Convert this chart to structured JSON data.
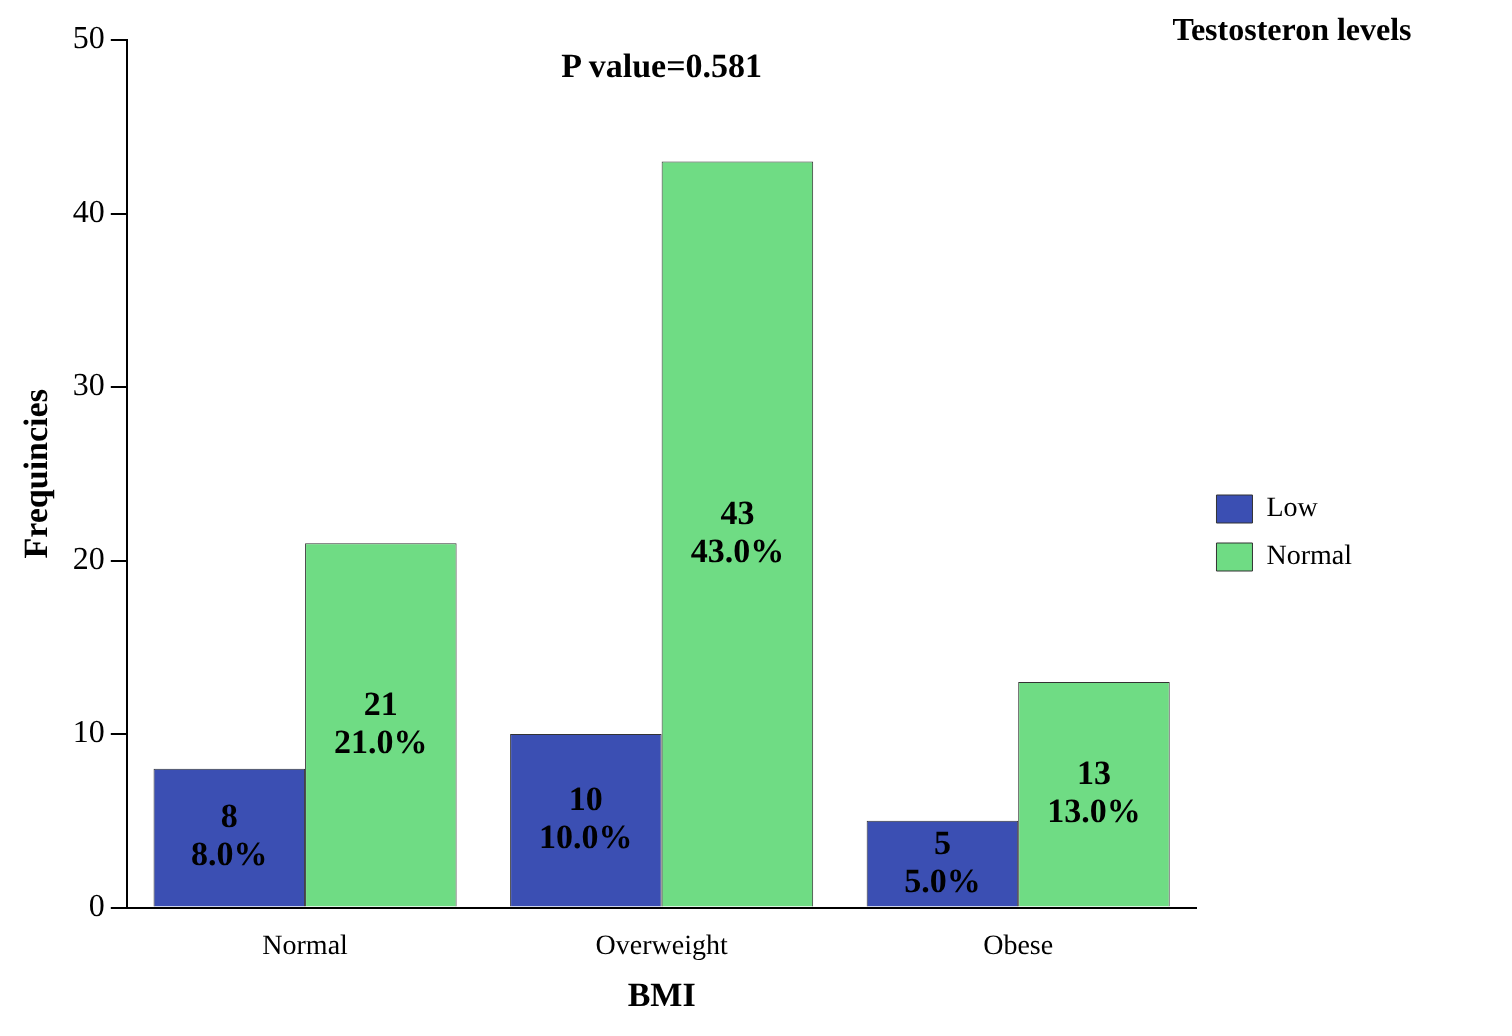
{
  "chart_data": {
    "type": "bar",
    "xlabel": "BMI",
    "ylabel": "Frequincies",
    "legend_title": "Testosteron levels",
    "legend": "right",
    "annotations": [
      "P value=0.581"
    ],
    "categories": [
      "Normal",
      "Overweight",
      "Obese"
    ],
    "series": [
      {
        "name": "Low",
        "color": "#3b4fb3",
        "values": [
          8,
          10,
          5
        ],
        "value_labels": [
          "8\n8.0%",
          "10\n10.0%",
          "5\n5.0%"
        ]
      },
      {
        "name": "Normal",
        "color": "#6fdc84",
        "values": [
          21,
          43,
          13
        ],
        "value_labels": [
          "21\n21.0%",
          "43\n43.0%",
          "13\n13.0%"
        ]
      }
    ],
    "ylim": [
      0,
      50
    ],
    "yticks": [
      0,
      10,
      20,
      30,
      40,
      50
    ],
    "grid": false
  }
}
